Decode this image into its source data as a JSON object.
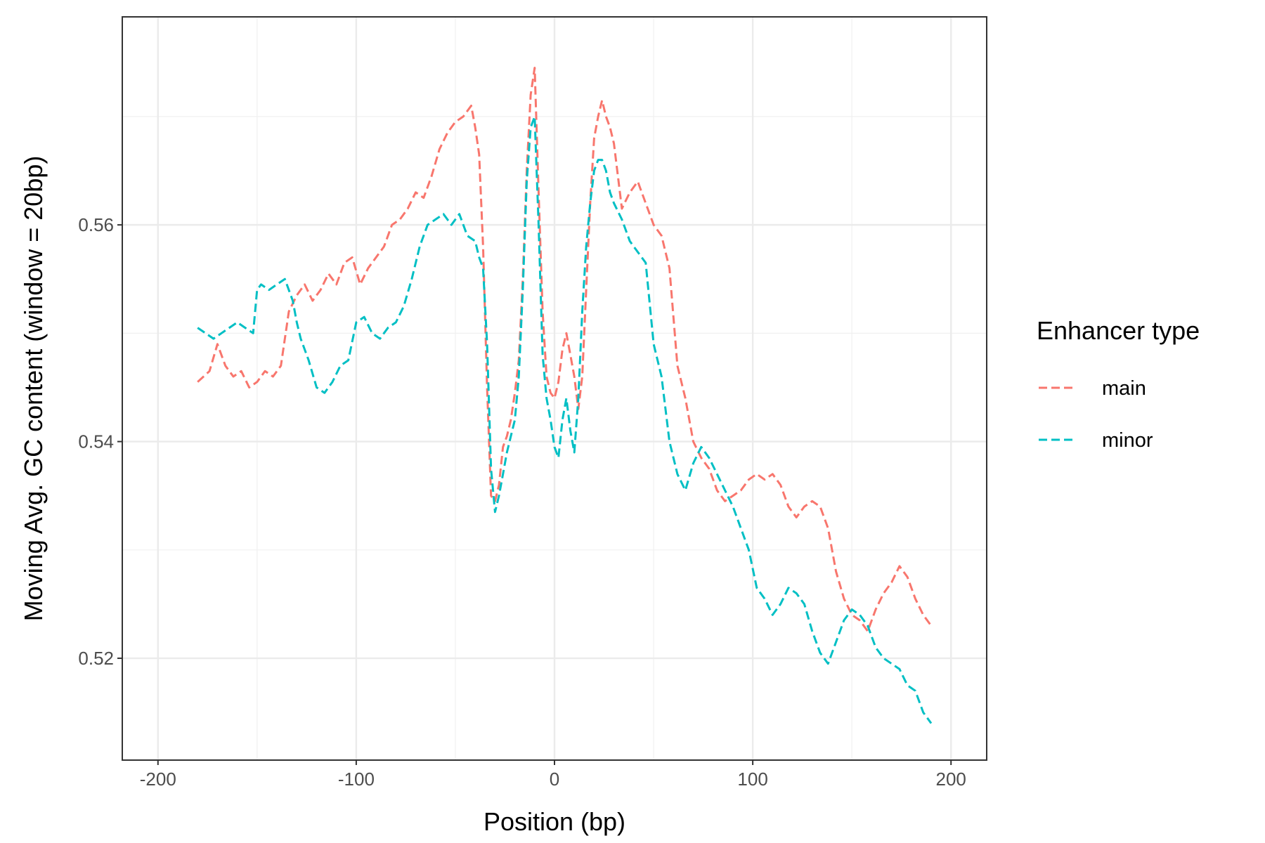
{
  "chart_data": {
    "type": "line",
    "xlabel": "Position (bp)",
    "ylabel": "Moving Avg. GC content (window = 20bp)",
    "xlim": [
      -218,
      218
    ],
    "ylim": [
      0.5106,
      0.5792
    ],
    "x_ticks": [
      -200,
      -100,
      0,
      100,
      200
    ],
    "x_tick_labels": [
      "-200",
      "-100",
      "0",
      "100",
      "200"
    ],
    "y_ticks": [
      0.52,
      0.54,
      0.56
    ],
    "y_tick_labels": [
      "0.52",
      "0.54",
      "0.56"
    ],
    "grid": true,
    "line_style": "dashed",
    "legend": {
      "title": "Enhancer type",
      "position": "right",
      "entries": [
        "main",
        "minor"
      ]
    },
    "series": [
      {
        "name": "main",
        "color": "#F8766D",
        "x": [
          -180,
          -174,
          -170,
          -166,
          -162,
          -158,
          -154,
          -150,
          -146,
          -142,
          -138,
          -134,
          -130,
          -126,
          -122,
          -118,
          -114,
          -110,
          -106,
          -102,
          -98,
          -94,
          -90,
          -86,
          -82,
          -78,
          -74,
          -70,
          -66,
          -62,
          -58,
          -54,
          -50,
          -46,
          -42,
          -40,
          -38,
          -36,
          -34,
          -32,
          -30,
          -28,
          -26,
          -24,
          -22,
          -20,
          -18,
          -16,
          -14,
          -12,
          -10,
          -8,
          -6,
          -4,
          -2,
          0,
          2,
          4,
          6,
          8,
          10,
          12,
          14,
          16,
          18,
          20,
          22,
          24,
          26,
          28,
          30,
          34,
          38,
          42,
          46,
          50,
          54,
          58,
          62,
          66,
          70,
          74,
          78,
          82,
          86,
          90,
          94,
          98,
          102,
          106,
          110,
          114,
          118,
          122,
          126,
          130,
          134,
          138,
          142,
          146,
          150,
          154,
          158,
          162,
          166,
          170,
          174,
          178,
          182,
          186,
          190
        ],
        "y": [
          0.5455,
          0.5465,
          0.549,
          0.547,
          0.546,
          0.5465,
          0.545,
          0.5455,
          0.5465,
          0.546,
          0.547,
          0.552,
          0.5535,
          0.5545,
          0.553,
          0.554,
          0.5555,
          0.5545,
          0.5565,
          0.557,
          0.5545,
          0.556,
          0.557,
          0.558,
          0.56,
          0.5605,
          0.5615,
          0.563,
          0.5625,
          0.5645,
          0.567,
          0.5685,
          0.5695,
          0.57,
          0.571,
          0.569,
          0.5665,
          0.558,
          0.545,
          0.535,
          0.5345,
          0.536,
          0.5395,
          0.5405,
          0.542,
          0.5445,
          0.5475,
          0.555,
          0.565,
          0.572,
          0.5745,
          0.563,
          0.552,
          0.546,
          0.5445,
          0.544,
          0.5455,
          0.5485,
          0.55,
          0.548,
          0.546,
          0.543,
          0.546,
          0.554,
          0.562,
          0.568,
          0.57,
          0.5715,
          0.57,
          0.569,
          0.5675,
          0.5615,
          0.563,
          0.564,
          0.562,
          0.56,
          0.559,
          0.556,
          0.547,
          0.544,
          0.54,
          0.5385,
          0.5375,
          0.5355,
          0.5345,
          0.535,
          0.5355,
          0.5365,
          0.537,
          0.5365,
          0.537,
          0.536,
          0.534,
          0.533,
          0.534,
          0.5345,
          0.534,
          0.532,
          0.528,
          0.5255,
          0.524,
          0.5235,
          0.5225,
          0.5245,
          0.526,
          0.527,
          0.5285,
          0.5275,
          0.5255,
          0.524,
          0.523
        ]
      },
      {
        "name": "minor",
        "color": "#00BFC4",
        "x": [
          -180,
          -176,
          -172,
          -168,
          -164,
          -160,
          -156,
          -152,
          -150,
          -148,
          -144,
          -140,
          -136,
          -132,
          -130,
          -128,
          -124,
          -120,
          -116,
          -112,
          -108,
          -104,
          -100,
          -96,
          -92,
          -88,
          -84,
          -80,
          -76,
          -72,
          -68,
          -64,
          -60,
          -56,
          -52,
          -48,
          -44,
          -40,
          -38,
          -36,
          -34,
          -32,
          -30,
          -28,
          -26,
          -24,
          -22,
          -20,
          -18,
          -16,
          -14,
          -12,
          -10,
          -8,
          -6,
          -4,
          -2,
          0,
          2,
          4,
          6,
          8,
          10,
          12,
          14,
          16,
          18,
          20,
          22,
          24,
          26,
          28,
          30,
          34,
          38,
          42,
          46,
          50,
          54,
          58,
          62,
          66,
          70,
          74,
          78,
          82,
          86,
          90,
          94,
          98,
          102,
          106,
          110,
          114,
          118,
          122,
          126,
          130,
          134,
          138,
          142,
          146,
          150,
          154,
          158,
          162,
          166,
          170,
          174,
          178,
          182,
          186,
          190
        ],
        "y": [
          0.5505,
          0.55,
          0.5495,
          0.55,
          0.5505,
          0.551,
          0.5505,
          0.55,
          0.554,
          0.5545,
          0.554,
          0.5545,
          0.555,
          0.553,
          0.551,
          0.5495,
          0.5475,
          0.545,
          0.5445,
          0.5455,
          0.547,
          0.5475,
          0.551,
          0.5515,
          0.55,
          0.5495,
          0.5505,
          0.551,
          0.5525,
          0.555,
          0.558,
          0.56,
          0.5605,
          0.561,
          0.56,
          0.561,
          0.559,
          0.5585,
          0.557,
          0.556,
          0.549,
          0.5375,
          0.5335,
          0.535,
          0.537,
          0.539,
          0.5405,
          0.542,
          0.546,
          0.554,
          0.564,
          0.569,
          0.57,
          0.56,
          0.548,
          0.544,
          0.542,
          0.5395,
          0.5385,
          0.542,
          0.544,
          0.541,
          0.539,
          0.544,
          0.552,
          0.558,
          0.562,
          0.565,
          0.566,
          0.566,
          0.565,
          0.563,
          0.562,
          0.5605,
          0.5585,
          0.5575,
          0.5565,
          0.549,
          0.546,
          0.54,
          0.537,
          0.5355,
          0.538,
          0.5395,
          0.5385,
          0.537,
          0.5355,
          0.534,
          0.532,
          0.53,
          0.5265,
          0.5255,
          0.524,
          0.525,
          0.5265,
          0.526,
          0.525,
          0.5225,
          0.5205,
          0.5195,
          0.5215,
          0.5235,
          0.5245,
          0.524,
          0.523,
          0.521,
          0.52,
          0.5195,
          0.519,
          0.5175,
          0.517,
          0.515,
          0.514
        ]
      }
    ]
  }
}
